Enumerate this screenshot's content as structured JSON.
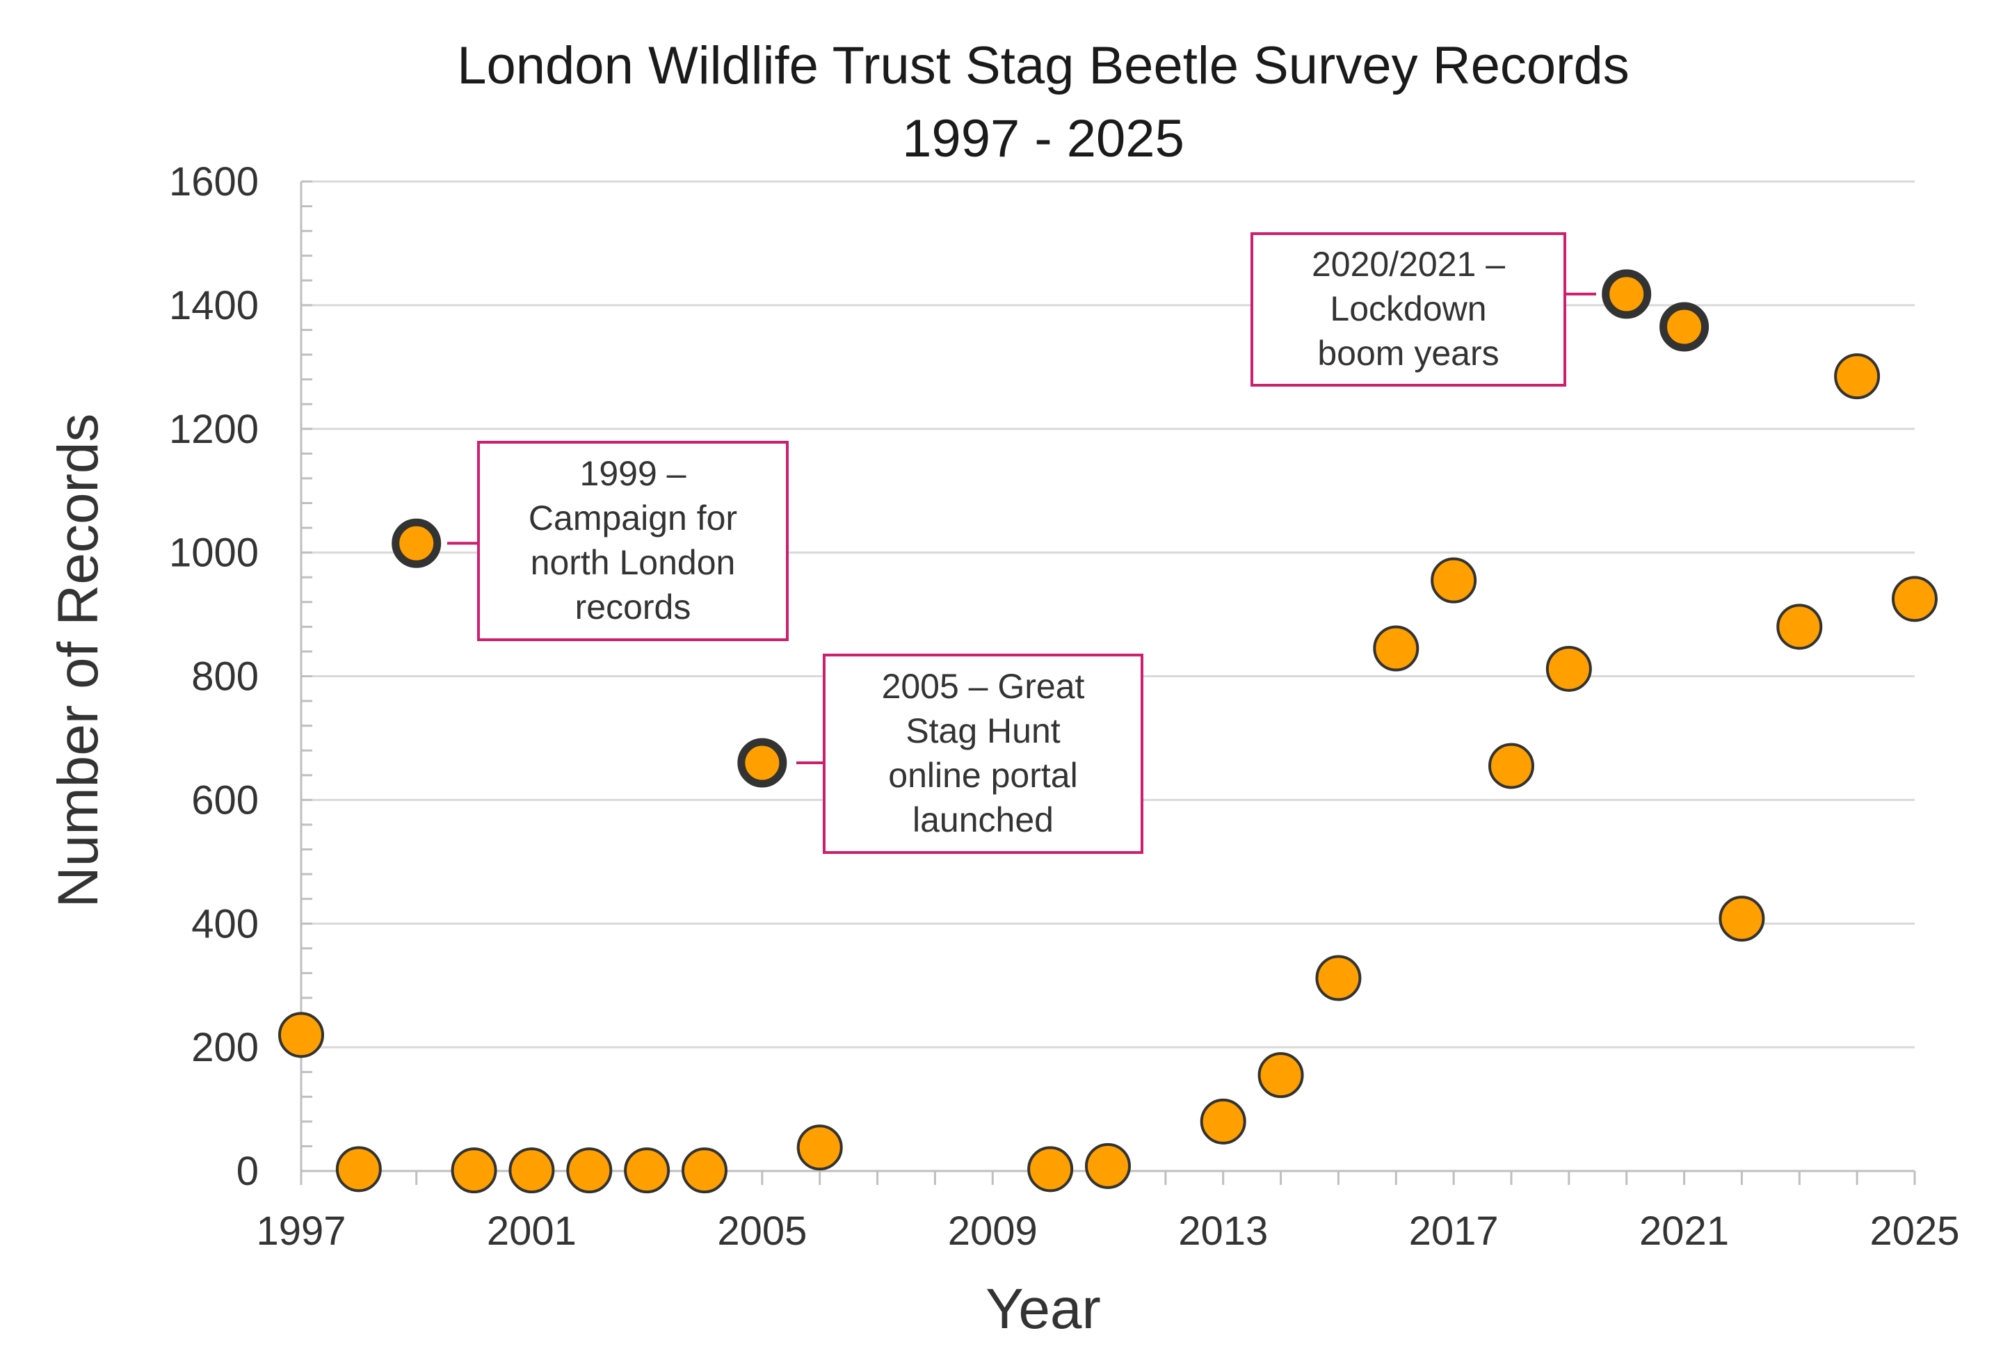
{
  "chart_data": {
    "type": "scatter",
    "title": "London Wildlife Trust Stag Beetle Survey Records",
    "subtitle": "1997 - 2025",
    "xlabel": "Year",
    "ylabel": "Number of Records",
    "xlim": [
      1997,
      2025
    ],
    "ylim": [
      0,
      1600
    ],
    "x_ticks": [
      1997,
      2001,
      2005,
      2009,
      2013,
      2017,
      2021,
      2025
    ],
    "y_ticks": [
      0,
      200,
      400,
      600,
      800,
      1000,
      1200,
      1400,
      1600
    ],
    "grid": "horizontal",
    "series": [
      {
        "name": "Records",
        "color": "#FFA000",
        "points": [
          {
            "x": 1997,
            "y": 220
          },
          {
            "x": 1998,
            "y": 3
          },
          {
            "x": 1999,
            "y": 1015,
            "highlight": true
          },
          {
            "x": 2000,
            "y": 1
          },
          {
            "x": 2001,
            "y": 1
          },
          {
            "x": 2002,
            "y": 1
          },
          {
            "x": 2003,
            "y": 1
          },
          {
            "x": 2004,
            "y": 1
          },
          {
            "x": 2005,
            "y": 660,
            "highlight": true
          },
          {
            "x": 2006,
            "y": 38
          },
          {
            "x": 2010,
            "y": 3
          },
          {
            "x": 2011,
            "y": 8
          },
          {
            "x": 2013,
            "y": 80
          },
          {
            "x": 2014,
            "y": 155
          },
          {
            "x": 2015,
            "y": 312
          },
          {
            "x": 2016,
            "y": 845
          },
          {
            "x": 2017,
            "y": 955
          },
          {
            "x": 2018,
            "y": 655
          },
          {
            "x": 2019,
            "y": 812
          },
          {
            "x": 2020,
            "y": 1418,
            "highlight": true
          },
          {
            "x": 2021,
            "y": 1365,
            "highlight": true
          },
          {
            "x": 2022,
            "y": 408
          },
          {
            "x": 2023,
            "y": 880
          },
          {
            "x": 2024,
            "y": 1285
          },
          {
            "x": 2025,
            "y": 925
          }
        ]
      }
    ],
    "annotations": [
      {
        "label": [
          "1999 –",
          "Campaign for",
          "north London",
          "records"
        ],
        "target_x": 1999,
        "target_y": 1015
      },
      {
        "label": [
          "2005 – Great",
          "Stag Hunt",
          "online portal",
          "launched"
        ],
        "target_x": 2005,
        "target_y": 660
      },
      {
        "label": [
          "2020/2021 –",
          "Lockdown",
          "boom years"
        ],
        "target_x": 2020,
        "target_y": 1418
      }
    ],
    "colors": {
      "marker_fill": "#FFA000",
      "marker_stroke": "#333333",
      "annotation_border": "#CC1F6E",
      "grid": "#D9D9D9",
      "axis": "#BFBFBF"
    }
  }
}
